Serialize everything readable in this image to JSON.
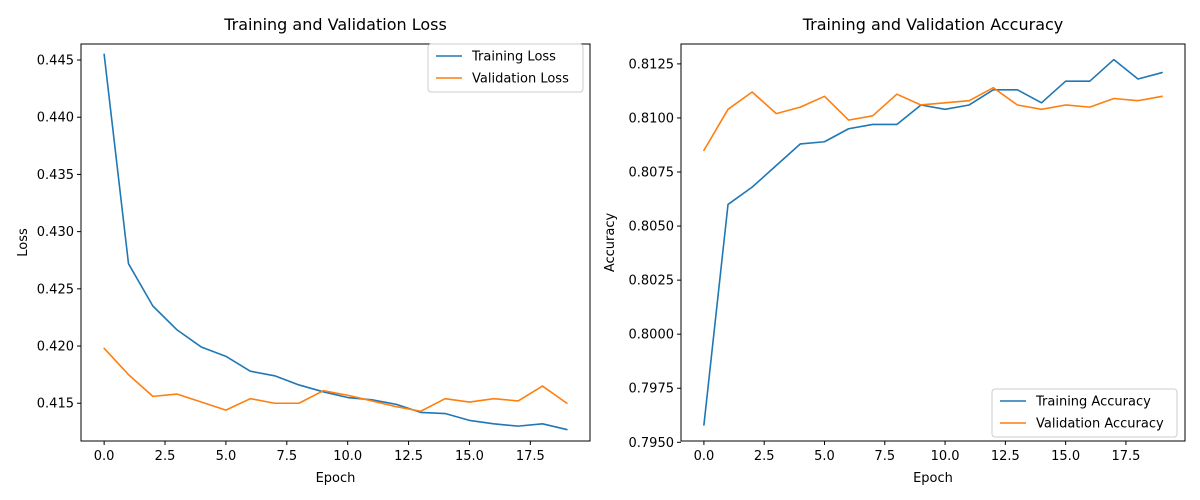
{
  "colors": {
    "train": "#1f77b4",
    "val": "#ff7f0e",
    "axis": "#000000",
    "legend_border": "#cccccc"
  },
  "chart_data": [
    {
      "type": "line",
      "title": "Training and Validation Loss",
      "xlabel": "Epoch",
      "ylabel": "Loss",
      "xlim": [
        -0.95,
        19.95
      ],
      "ylim": [
        0.4117,
        0.4464
      ],
      "xticks": [
        0.0,
        2.5,
        5.0,
        7.5,
        10.0,
        12.5,
        15.0,
        17.5
      ],
      "xtick_labels": [
        "0.0",
        "2.5",
        "5.0",
        "7.5",
        "10.0",
        "12.5",
        "15.0",
        "17.5"
      ],
      "yticks": [
        0.415,
        0.42,
        0.425,
        0.43,
        0.435,
        0.44,
        0.445
      ],
      "ytick_labels": [
        "0.415",
        "0.420",
        "0.425",
        "0.430",
        "0.435",
        "0.440",
        "0.445"
      ],
      "grid": false,
      "legend_position": "upper right",
      "x": [
        0,
        1,
        2,
        3,
        4,
        5,
        6,
        7,
        8,
        9,
        10,
        11,
        12,
        13,
        14,
        15,
        16,
        17,
        18,
        19
      ],
      "series": [
        {
          "name": "Training Loss",
          "color_key": "train",
          "values": [
            0.4455,
            0.4272,
            0.4235,
            0.4214,
            0.4199,
            0.4191,
            0.4178,
            0.4174,
            0.4166,
            0.416,
            0.4155,
            0.4153,
            0.4149,
            0.4142,
            0.4141,
            0.4135,
            0.4132,
            0.413,
            0.4132,
            0.4127
          ]
        },
        {
          "name": "Validation Loss",
          "color_key": "val",
          "values": [
            0.4198,
            0.4175,
            0.4156,
            0.4158,
            0.4151,
            0.4144,
            0.4154,
            0.415,
            0.415,
            0.4161,
            0.4157,
            0.4152,
            0.4147,
            0.4143,
            0.4154,
            0.4151,
            0.4154,
            0.4152,
            0.4165,
            0.415
          ]
        }
      ]
    },
    {
      "type": "line",
      "title": "Training and Validation Accuracy",
      "xlabel": "Epoch",
      "ylabel": "Accuracy",
      "xlim": [
        -0.95,
        19.95
      ],
      "ylim": [
        0.79506,
        0.81342
      ],
      "xticks": [
        0.0,
        2.5,
        5.0,
        7.5,
        10.0,
        12.5,
        15.0,
        17.5
      ],
      "xtick_labels": [
        "0.0",
        "2.5",
        "5.0",
        "7.5",
        "10.0",
        "12.5",
        "15.0",
        "17.5"
      ],
      "yticks": [
        0.795,
        0.7975,
        0.8,
        0.8025,
        0.805,
        0.8075,
        0.81,
        0.8125
      ],
      "ytick_labels": [
        "0.7950",
        "0.7975",
        "0.8000",
        "0.8025",
        "0.8050",
        "0.8075",
        "0.8100",
        "0.8125"
      ],
      "grid": false,
      "legend_position": "lower right",
      "x": [
        0,
        1,
        2,
        3,
        4,
        5,
        6,
        7,
        8,
        9,
        10,
        11,
        12,
        13,
        14,
        15,
        16,
        17,
        18,
        19
      ],
      "series": [
        {
          "name": "Training Accuracy",
          "color_key": "train",
          "values": [
            0.7958,
            0.806,
            0.8068,
            0.8078,
            0.8088,
            0.8089,
            0.8095,
            0.8097,
            0.8097,
            0.8106,
            0.8104,
            0.8106,
            0.8113,
            0.8113,
            0.8107,
            0.8117,
            0.8117,
            0.8127,
            0.8118,
            0.8121
          ]
        },
        {
          "name": "Validation Accuracy",
          "color_key": "val",
          "values": [
            0.8085,
            0.8104,
            0.8112,
            0.8102,
            0.8105,
            0.811,
            0.8099,
            0.8101,
            0.8111,
            0.8106,
            0.8107,
            0.8108,
            0.8114,
            0.8106,
            0.8104,
            0.8106,
            0.8105,
            0.8109,
            0.8108,
            0.811
          ]
        }
      ]
    }
  ]
}
